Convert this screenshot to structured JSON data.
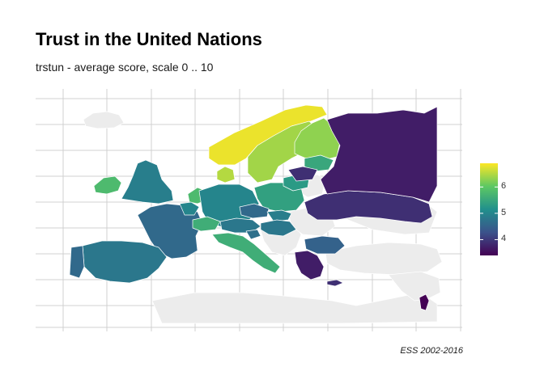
{
  "title": "Trust in the United Nations",
  "subtitle": "trstun - average score, scale 0 .. 10",
  "caption": "ESS 2002-2016",
  "legend": {
    "min": 3.4,
    "max": 6.9,
    "ticks": [
      {
        "value": 4,
        "label": "4"
      },
      {
        "value": 5,
        "label": "5"
      },
      {
        "value": 6,
        "label": "6"
      }
    ],
    "colors": [
      "#440154",
      "#3b528b",
      "#21908c",
      "#5dc863",
      "#fde725"
    ]
  },
  "no_data_color": "#ececec",
  "regions": [
    {
      "name": "Norway",
      "value": 6.8
    },
    {
      "name": "Sweden",
      "value": 6.4
    },
    {
      "name": "Finland",
      "value": 6.3
    },
    {
      "name": "Denmark",
      "value": 6.5
    },
    {
      "name": "Ireland",
      "value": 5.8
    },
    {
      "name": "United Kingdom",
      "value": 4.9
    },
    {
      "name": "France",
      "value": 4.6
    },
    {
      "name": "Spain",
      "value": 4.8
    },
    {
      "name": "Portugal",
      "value": 4.6
    },
    {
      "name": "Netherlands",
      "value": 5.8
    },
    {
      "name": "Belgium",
      "value": 5.0
    },
    {
      "name": "Germany",
      "value": 5.0
    },
    {
      "name": "Switzerland",
      "value": 5.6
    },
    {
      "name": "Austria",
      "value": 4.8
    },
    {
      "name": "Italy",
      "value": 5.6
    },
    {
      "name": "Poland",
      "value": 5.4
    },
    {
      "name": "Czechia",
      "value": 4.6
    },
    {
      "name": "Slovakia",
      "value": 4.9
    },
    {
      "name": "Hungary",
      "value": 4.8
    },
    {
      "name": "Slovenia",
      "value": 4.7
    },
    {
      "name": "Estonia",
      "value": 5.5
    },
    {
      "name": "Lithuania",
      "value": 5.3
    },
    {
      "name": "Latvia",
      "value": 3.9
    },
    {
      "name": "Ukraine",
      "value": 3.9
    },
    {
      "name": "Russia",
      "value": 3.7
    },
    {
      "name": "Bulgaria",
      "value": 4.5
    },
    {
      "name": "Greece",
      "value": 3.7
    },
    {
      "name": "Cyprus",
      "value": 3.9
    },
    {
      "name": "Israel",
      "value": 3.4
    }
  ]
}
